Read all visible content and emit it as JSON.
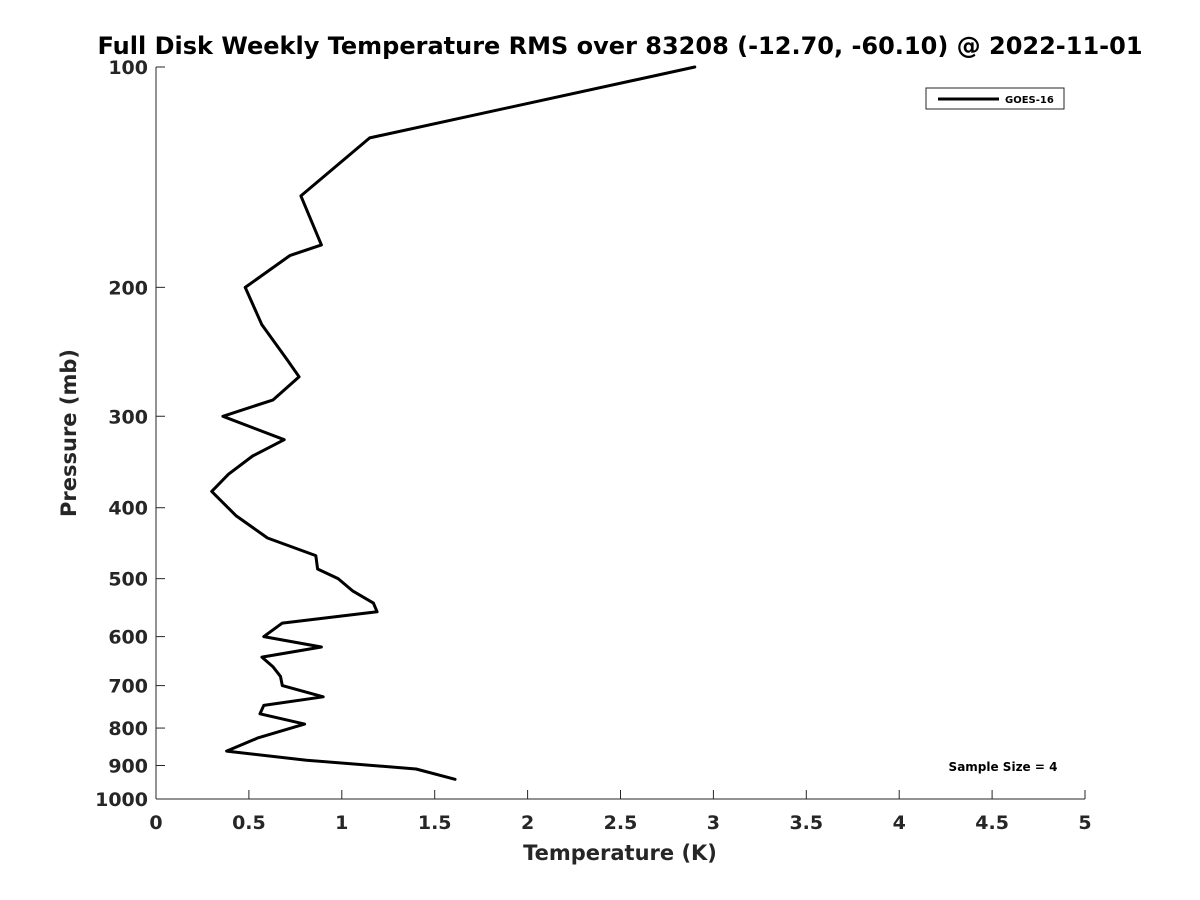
{
  "chart_data": {
    "type": "line",
    "title": "Full Disk Weekly Temperature RMS over 83208 (-12.70, -60.10) @ 2022-11-01",
    "xlabel": "Temperature (K)",
    "ylabel": "Pressure (mb)",
    "xlim": [
      0,
      5
    ],
    "ylim": [
      100,
      1000
    ],
    "y_scale": "log",
    "y_reversed": true,
    "x_ticks": [
      "0",
      "0.5",
      "1",
      "1.5",
      "2",
      "2.5",
      "3",
      "3.5",
      "4",
      "4.5",
      "5"
    ],
    "y_ticks": [
      "100",
      "200",
      "300",
      "400",
      "500",
      "600",
      "700",
      "800",
      "900",
      "1000"
    ],
    "grid": false,
    "legend": {
      "position": "top-right",
      "entries": [
        "GOES-16"
      ]
    },
    "annotation": "Sample Size = 4",
    "series_color": "#000000",
    "series": [
      {
        "name": "GOES-16",
        "x": [
          2.9,
          1.15,
          0.78,
          0.89,
          0.72,
          0.48,
          0.57,
          0.7,
          0.77,
          0.63,
          0.36,
          0.69,
          0.52,
          0.39,
          0.3,
          0.43,
          0.6,
          0.86,
          0.87,
          0.98,
          1.06,
          1.17,
          1.19,
          0.68,
          0.58,
          0.89,
          0.57,
          0.63,
          0.67,
          0.68,
          0.9,
          0.58,
          0.56,
          0.8,
          0.55,
          0.38,
          0.81,
          1.4,
          1.61
        ],
        "y": [
          100,
          125,
          150,
          175,
          181,
          200,
          225,
          250,
          265,
          285,
          300,
          323,
          340,
          360,
          380,
          410,
          440,
          465,
          485,
          500,
          520,
          540,
          555,
          575,
          600,
          620,
          640,
          660,
          680,
          700,
          725,
          745,
          765,
          790,
          825,
          860,
          885,
          910,
          940
        ]
      }
    ]
  }
}
